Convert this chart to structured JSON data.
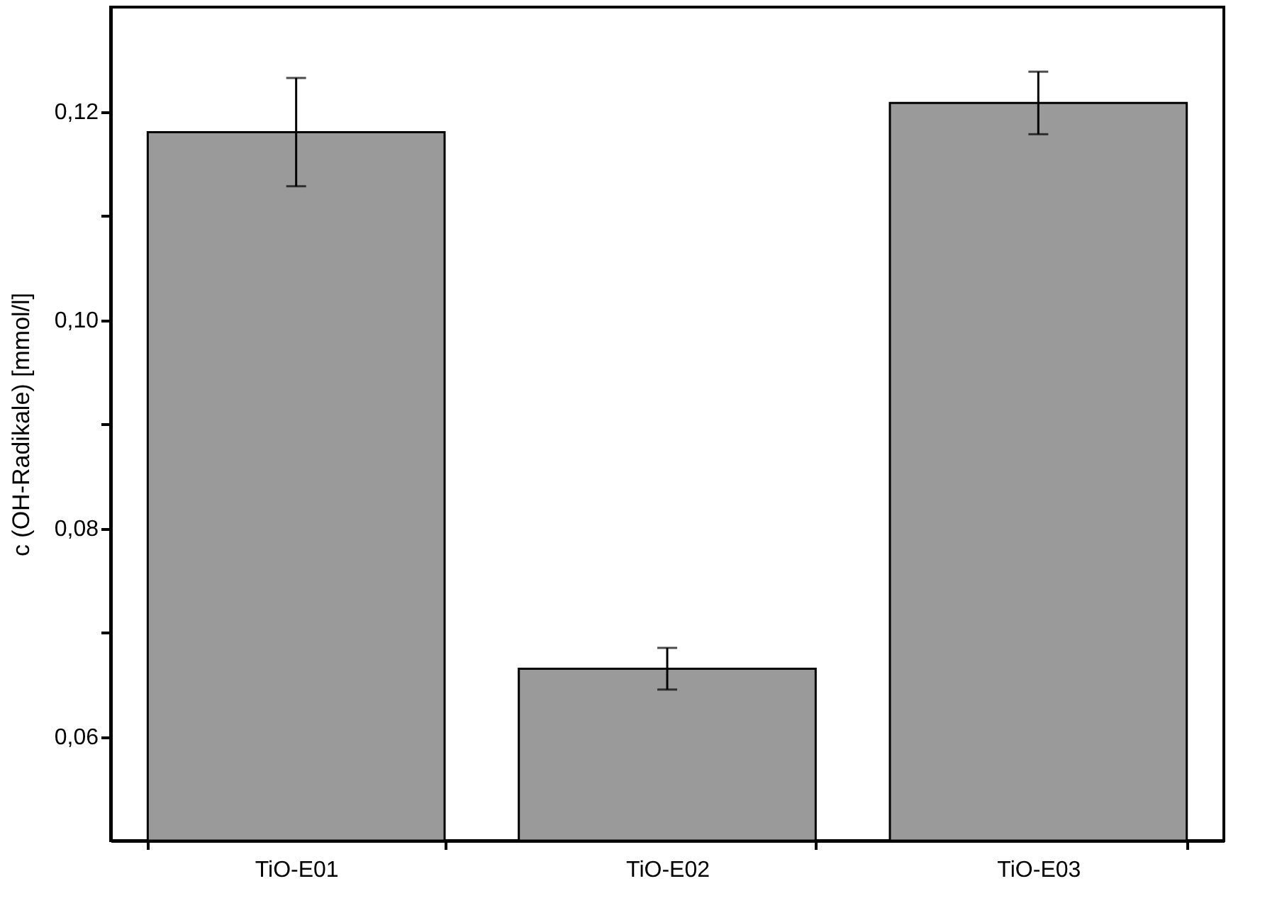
{
  "chart_data": {
    "type": "bar",
    "ylabel": "c (OH-Radikale) [mmol/l]",
    "categories": [
      "TiO-E01",
      "TiO-E02",
      "TiO-E03"
    ],
    "series": [
      {
        "color": "#9a9a9a",
        "values": [
          0.118,
          0.0665,
          0.1208
        ],
        "errors": [
          0.0052,
          0.002,
          0.003
        ]
      }
    ],
    "ylim": [
      0.05,
      0.13
    ],
    "yticks": [
      {
        "value": 0.06,
        "label": "0,06"
      },
      {
        "value": 0.07,
        "label": null
      },
      {
        "value": 0.08,
        "label": "0,08"
      },
      {
        "value": 0.09,
        "label": null
      },
      {
        "value": 0.1,
        "label": "0,10"
      },
      {
        "value": 0.11,
        "label": null
      },
      {
        "value": 0.12,
        "label": "0,12"
      }
    ],
    "grid": false
  }
}
